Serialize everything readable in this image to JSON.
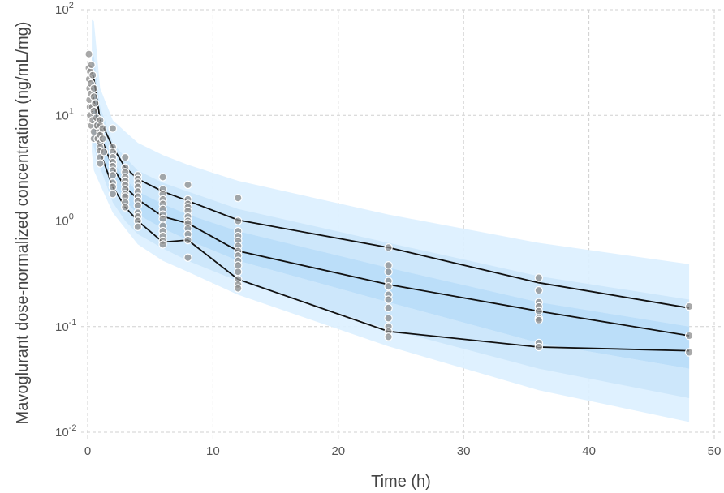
{
  "chart_data": {
    "type": "scatter",
    "title": "",
    "xlabel": "Time (h)",
    "ylabel": "Mavoglurant dose-normalized concentration (ng/mL/mg)",
    "xlim": [
      0,
      50
    ],
    "ylim": [
      0.01,
      100
    ],
    "y_scale": "log",
    "grid": true,
    "x_ticks": [
      0,
      10,
      20,
      30,
      40,
      50
    ],
    "x_tick_labels": [
      "0",
      "10",
      "20",
      "30",
      "40",
      "50"
    ],
    "y_ticks": [
      0.01,
      0.1,
      1,
      10,
      100
    ],
    "y_tick_labels": [
      {
        "base": "10",
        "exp": "-2"
      },
      {
        "base": "10",
        "exp": "-1"
      },
      {
        "base": "10",
        "exp": "0"
      },
      {
        "base": "10",
        "exp": "1"
      },
      {
        "base": "10",
        "exp": "2"
      }
    ],
    "bands": [
      {
        "role": "outer-light",
        "color": "#dcefff",
        "x": [
          0.33,
          0.5,
          1,
          2,
          3,
          4,
          6,
          8,
          12,
          24,
          36,
          48
        ],
        "upper": [
          80,
          78,
          18,
          9,
          7,
          5.5,
          4.2,
          3.4,
          2.4,
          1.15,
          0.62,
          0.39
        ],
        "lower": [
          4.5,
          3.0,
          2.2,
          1.2,
          0.85,
          0.6,
          0.42,
          0.33,
          0.2,
          0.065,
          0.025,
          0.0125
        ]
      },
      {
        "role": "upper-pi",
        "color": "#cbe6fb",
        "x": [
          0.33,
          0.5,
          1,
          2,
          3,
          4,
          6,
          8,
          12,
          24,
          36,
          48
        ],
        "upper": [
          40,
          36,
          12,
          5.5,
          4.0,
          3.0,
          2.3,
          1.9,
          1.3,
          0.62,
          0.3,
          0.18
        ],
        "lower": [
          22,
          20,
          7.5,
          3.6,
          2.5,
          1.9,
          1.45,
          1.15,
          0.8,
          0.36,
          0.17,
          0.1
        ]
      },
      {
        "role": "median-pi",
        "color": "#b7dcf8",
        "x": [
          0.33,
          0.5,
          1,
          2,
          3,
          4,
          6,
          8,
          12,
          24,
          36,
          48
        ],
        "upper": [
          22,
          20,
          7.5,
          3.6,
          2.5,
          1.9,
          1.45,
          1.15,
          0.8,
          0.36,
          0.17,
          0.1
        ],
        "lower": [
          10,
          9,
          5,
          2.3,
          1.55,
          1.15,
          0.85,
          0.66,
          0.42,
          0.17,
          0.07,
          0.04
        ]
      },
      {
        "role": "lower-pi",
        "color": "#cbe6fb",
        "x": [
          0.33,
          0.5,
          1,
          2,
          3,
          4,
          6,
          8,
          12,
          24,
          36,
          48
        ],
        "upper": [
          10,
          9,
          5,
          2.3,
          1.55,
          1.15,
          0.85,
          0.66,
          0.42,
          0.17,
          0.07,
          0.04
        ],
        "lower": [
          6,
          5,
          3.2,
          1.5,
          1.0,
          0.75,
          0.55,
          0.42,
          0.27,
          0.095,
          0.04,
          0.021
        ]
      }
    ],
    "series": [
      {
        "color": "#111111",
        "x": [
          0.33,
          0.5,
          1,
          2,
          3,
          4,
          6,
          8,
          12,
          24,
          36,
          48
        ],
        "values": [
          26,
          22,
          9,
          5,
          3.2,
          2.5,
          1.9,
          1.55,
          1.02,
          0.56,
          0.26,
          0.15
        ]
      },
      {
        "color": "#111111",
        "x": [
          0.33,
          0.5,
          1,
          2,
          3,
          4,
          6,
          8,
          12,
          24,
          36,
          48
        ],
        "values": [
          16,
          14,
          6.5,
          3.2,
          2.1,
          1.6,
          1.1,
          0.95,
          0.52,
          0.25,
          0.14,
          0.082
        ]
      },
      {
        "color": "#111111",
        "x": [
          0.33,
          0.5,
          1,
          2,
          3,
          4,
          6,
          8,
          12,
          24,
          36,
          48
        ],
        "values": [
          11,
          9.5,
          4.5,
          2.1,
          1.35,
          1.0,
          0.63,
          0.66,
          0.28,
          0.09,
          0.064,
          0.059
        ]
      }
    ],
    "observations": {
      "fill": "#8c8c8c",
      "points": [
        [
          0.1,
          38
        ],
        [
          0.1,
          28
        ],
        [
          0.12,
          22
        ],
        [
          0.15,
          18
        ],
        [
          0.15,
          14
        ],
        [
          0.18,
          12
        ],
        [
          0.2,
          26
        ],
        [
          0.2,
          10
        ],
        [
          0.25,
          20
        ],
        [
          0.25,
          16
        ],
        [
          0.3,
          8
        ],
        [
          0.3,
          30
        ],
        [
          0.35,
          12
        ],
        [
          0.4,
          24
        ],
        [
          0.4,
          9
        ],
        [
          0.5,
          18
        ],
        [
          0.5,
          15
        ],
        [
          0.5,
          11
        ],
        [
          0.5,
          7
        ],
        [
          0.5,
          6
        ],
        [
          0.6,
          13
        ],
        [
          0.7,
          9.5
        ],
        [
          0.75,
          8
        ],
        [
          0.8,
          6
        ],
        [
          1,
          9
        ],
        [
          1,
          8
        ],
        [
          1,
          7
        ],
        [
          1,
          6.5
        ],
        [
          1,
          5.5
        ],
        [
          1,
          5
        ],
        [
          1,
          4.6
        ],
        [
          1,
          4
        ],
        [
          1,
          3.5
        ],
        [
          1.2,
          7.5
        ],
        [
          1.2,
          6
        ],
        [
          1.3,
          4.5
        ],
        [
          2,
          7.5
        ],
        [
          2,
          5
        ],
        [
          2,
          4.5
        ],
        [
          2,
          4
        ],
        [
          2,
          3.6
        ],
        [
          2,
          3.3
        ],
        [
          2,
          3
        ],
        [
          2,
          2.7
        ],
        [
          2,
          2.3
        ],
        [
          2,
          2.1
        ],
        [
          2,
          1.8
        ],
        [
          3,
          4
        ],
        [
          3,
          3.2
        ],
        [
          3,
          2.9
        ],
        [
          3,
          2.6
        ],
        [
          3,
          2.4
        ],
        [
          3,
          2.2
        ],
        [
          3,
          2
        ],
        [
          3,
          1.8
        ],
        [
          3,
          1.7
        ],
        [
          3,
          1.5
        ],
        [
          3,
          1.35
        ],
        [
          4,
          2.7
        ],
        [
          4,
          2.5
        ],
        [
          4,
          2.3
        ],
        [
          4,
          2.1
        ],
        [
          4,
          1.9
        ],
        [
          4,
          1.7
        ],
        [
          4,
          1.55
        ],
        [
          4,
          1.4
        ],
        [
          4,
          1.2
        ],
        [
          4,
          1.1
        ],
        [
          4,
          1.0
        ],
        [
          4,
          0.88
        ],
        [
          6,
          2.6
        ],
        [
          6,
          2
        ],
        [
          6,
          1.8
        ],
        [
          6,
          1.6
        ],
        [
          6,
          1.45
        ],
        [
          6,
          1.3
        ],
        [
          6,
          1.15
        ],
        [
          6,
          1.05
        ],
        [
          6,
          0.9
        ],
        [
          6,
          0.8
        ],
        [
          6,
          0.72
        ],
        [
          6,
          0.65
        ],
        [
          6,
          0.6
        ],
        [
          8,
          2.2
        ],
        [
          8,
          1.6
        ],
        [
          8,
          1.45
        ],
        [
          8,
          1.35
        ],
        [
          8,
          1.25
        ],
        [
          8,
          1.1
        ],
        [
          8,
          1.0
        ],
        [
          8,
          0.95
        ],
        [
          8,
          0.85
        ],
        [
          8,
          0.75
        ],
        [
          8,
          0.66
        ],
        [
          8,
          0.45
        ],
        [
          12,
          1.65
        ],
        [
          12,
          1.0
        ],
        [
          12,
          0.8
        ],
        [
          12,
          0.72
        ],
        [
          12,
          0.65
        ],
        [
          12,
          0.58
        ],
        [
          12,
          0.52
        ],
        [
          12,
          0.47
        ],
        [
          12,
          0.42
        ],
        [
          12,
          0.38
        ],
        [
          12,
          0.33
        ],
        [
          12,
          0.28
        ],
        [
          12,
          0.25
        ],
        [
          12,
          0.23
        ],
        [
          24,
          0.56
        ],
        [
          24,
          0.38
        ],
        [
          24,
          0.33
        ],
        [
          24,
          0.27
        ],
        [
          24,
          0.24
        ],
        [
          24,
          0.2
        ],
        [
          24,
          0.18
        ],
        [
          24,
          0.15
        ],
        [
          24,
          0.12
        ],
        [
          24,
          0.1
        ],
        [
          24,
          0.09
        ],
        [
          24,
          0.08
        ],
        [
          36,
          0.29
        ],
        [
          36,
          0.22
        ],
        [
          36,
          0.17
        ],
        [
          36,
          0.155
        ],
        [
          36,
          0.14
        ],
        [
          36,
          0.12
        ],
        [
          36,
          0.115
        ],
        [
          36,
          0.07
        ],
        [
          36,
          0.064
        ],
        [
          48,
          0.155
        ],
        [
          48,
          0.082
        ],
        [
          48,
          0.057
        ]
      ]
    }
  }
}
